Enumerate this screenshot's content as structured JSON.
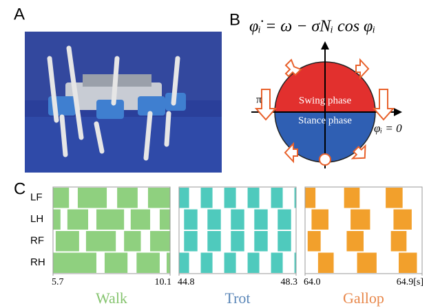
{
  "panel_a": {
    "label": "A"
  },
  "panel_b": {
    "label": "B",
    "equation": "φ̇ᵢ = ω − σNᵢ cos φᵢ",
    "pi_label": "π",
    "swing_label": "Swing phase",
    "stance_label": "Stance phase",
    "zero_label": "φᵢ = 0"
  },
  "panel_c": {
    "label": "C",
    "legs": [
      "LF",
      "LH",
      "RF",
      "RH"
    ],
    "gaits": [
      {
        "name": "Walk",
        "color": "#8fd07f",
        "label_color": "#86c46f",
        "xlim": [
          5.7,
          10.1
        ],
        "xticks": [
          5.7,
          10.1
        ],
        "stance": [
          [
            [
              5.7,
              6.3
            ],
            [
              6.63,
              7.72
            ],
            [
              8.11,
              8.88
            ],
            [
              9.27,
              10.1
            ]
          ],
          [
            [
              5.7,
              5.98
            ],
            [
              6.24,
              7.02
            ],
            [
              7.33,
              8.37
            ],
            [
              8.62,
              9.35
            ],
            [
              9.71,
              10.1
            ]
          ],
          [
            [
              5.8,
              6.68
            ],
            [
              6.94,
              8.06
            ],
            [
              8.37,
              9.0
            ],
            [
              9.35,
              10.1
            ]
          ],
          [
            [
              5.7,
              7.33
            ],
            [
              7.64,
              8.5
            ],
            [
              8.84,
              9.71
            ],
            [
              9.97,
              10.1
            ]
          ]
        ]
      },
      {
        "name": "Trot",
        "color": "#4fcabd",
        "label_color": "#5a86b8",
        "xlim": [
          44.8,
          48.3
        ],
        "xticks": [
          44.8,
          48.3
        ],
        "stance": [
          [
            [
              44.8,
              45.1
            ],
            [
              45.45,
              45.8
            ],
            [
              46.15,
              46.5
            ],
            [
              46.85,
              47.2
            ],
            [
              47.55,
              47.9
            ],
            [
              48.25,
              48.3
            ]
          ],
          [
            [
              44.95,
              45.35
            ],
            [
              45.65,
              46.05
            ],
            [
              46.35,
              46.75
            ],
            [
              47.05,
              47.45
            ],
            [
              47.75,
              48.15
            ]
          ],
          [
            [
              44.95,
              45.35
            ],
            [
              45.65,
              46.05
            ],
            [
              46.35,
              46.75
            ],
            [
              47.05,
              47.45
            ],
            [
              47.75,
              48.15
            ]
          ],
          [
            [
              44.8,
              45.1
            ],
            [
              45.45,
              45.8
            ],
            [
              46.15,
              46.5
            ],
            [
              46.85,
              47.2
            ],
            [
              47.55,
              47.9
            ],
            [
              48.25,
              48.3
            ]
          ]
        ]
      },
      {
        "name": "Gallop",
        "color": "#f2a02c",
        "label_color": "#e8874a",
        "xlim": [
          64,
          64.9
        ],
        "xticks": [
          {
            "value": 64,
            "label": "64.0"
          },
          {
            "value": 64.9,
            "label": "64.9[s]"
          }
        ],
        "stance": [
          [
            [
              64.0,
              64.08
            ],
            [
              64.3,
              64.42
            ],
            [
              64.62,
              64.75
            ]
          ],
          [
            [
              64.05,
              64.18
            ],
            [
              64.35,
              64.5
            ],
            [
              64.68,
              64.82
            ]
          ],
          [
            [
              64.02,
              64.12
            ],
            [
              64.32,
              64.45
            ],
            [
              64.66,
              64.78
            ]
          ],
          [
            [
              64.1,
              64.22
            ],
            [
              64.4,
              64.55
            ],
            [
              64.72,
              64.86
            ]
          ]
        ]
      }
    ]
  }
}
